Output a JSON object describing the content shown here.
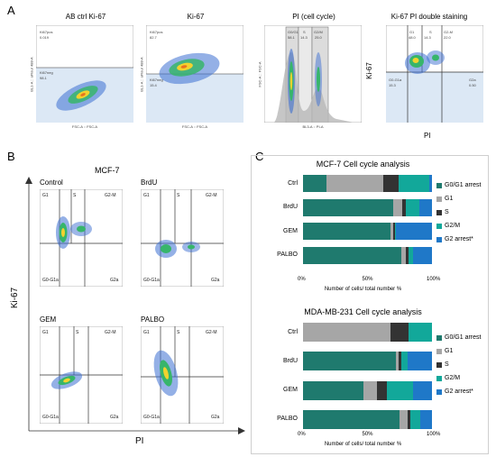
{
  "panel_letters": {
    "a": "A",
    "b": "B",
    "c": "C"
  },
  "panel_a": {
    "plots": [
      {
        "title": "AB ctrl Ki-67",
        "xlabel": "FSC-A :: FSC-A",
        "ylabel": "BL1-A :: aFlour 488-A",
        "gates": [
          {
            "label": "Ki67pos",
            "value": "0.019"
          },
          {
            "label": "Ki67neg",
            "value": "98.1"
          }
        ]
      },
      {
        "title": "Ki-67",
        "xlabel": "FSC-A :: FSC-A",
        "ylabel": "BL1-A :: aFlour 488-A",
        "gates": [
          {
            "label": "Ki67pos",
            "value": "82.7"
          },
          {
            "label": "Ki67neg",
            "value": "15.4"
          }
        ]
      },
      {
        "title": "PI (cell cycle)",
        "xlabel": "BL3-A :: PI-A",
        "ylabel": "FSC-A :: FSC-A",
        "gates": [
          {
            "label": "G0/G1",
            "value": "58.1"
          },
          {
            "label": "S",
            "value": "14.3"
          },
          {
            "label": "G2/M",
            "value": "25.0"
          }
        ]
      },
      {
        "title": "Ki-67 PI double staining",
        "xlabel": "PI",
        "ylabel": "Ki-67",
        "gates": [
          {
            "label": "G1",
            "value": "48.0"
          },
          {
            "label": "S",
            "value": "14.3"
          },
          {
            "label": "G2-M",
            "value": "22.0"
          },
          {
            "label": "G0-G1a",
            "value": "15.3"
          },
          {
            "label": "G2a",
            "value": "0.50"
          }
        ]
      }
    ]
  },
  "panel_b": {
    "title": "MCF-7",
    "xlabel": "PI",
    "ylabel": "Ki-67",
    "plots": [
      "Control",
      "BrdU",
      "GEM",
      "PALBO"
    ],
    "gate_labels": {
      "g1": "G1",
      "s": "S",
      "g2m": "G2-M",
      "g0": "G0-G1a",
      "g2a": "G2a"
    }
  },
  "panel_c": {
    "colors": {
      "G0/G1 arrest": "#1f7a6e",
      "G1": "#a6a6a6",
      "S": "#333333",
      "G2/M": "#12a89a",
      "G2 arrest*": "#1f78c8"
    },
    "xlabel": "Number of cells/ total number %",
    "ticks": [
      "0%",
      "50%",
      "100%"
    ],
    "legend": [
      "G0/G1 arrest",
      "G1",
      "S",
      "G2/M",
      "G2 arrest*"
    ],
    "chart_data": [
      {
        "type": "bar",
        "orientation": "horizontal-stacked",
        "title": "MCF-7 Cell cycle analysis",
        "categories": [
          "Ctrl",
          "BrdU",
          "GEM",
          "PALBO"
        ],
        "series": [
          {
            "name": "G0/G1 arrest",
            "values": [
              18,
              70,
              68,
              76
            ]
          },
          {
            "name": "G1",
            "values": [
              44,
              7,
              2,
              4
            ]
          },
          {
            "name": "S",
            "values": [
              12,
              3,
              1,
              2
            ]
          },
          {
            "name": "G2/M",
            "values": [
              24,
              10,
              1,
              3
            ]
          },
          {
            "name": "G2 arrest*",
            "values": [
              2,
              10,
              28,
              15
            ]
          }
        ],
        "xlim": [
          0,
          100
        ]
      },
      {
        "type": "bar",
        "orientation": "horizontal-stacked",
        "title": "MDA-MB-231 Cell cycle analysis",
        "categories": [
          "Ctrl",
          "BrdU",
          "GEM",
          "PALBO"
        ],
        "series": [
          {
            "name": "G0/G1 arrest",
            "values": [
              0,
              72,
              47,
              75
            ]
          },
          {
            "name": "G1",
            "values": [
              68,
              2,
              10,
              6
            ]
          },
          {
            "name": "S",
            "values": [
              14,
              2,
              8,
              2
            ]
          },
          {
            "name": "G2/M",
            "values": [
              18,
              5,
              20,
              8
            ]
          },
          {
            "name": "G2 arrest*",
            "values": [
              0,
              19,
              15,
              9
            ]
          }
        ],
        "xlim": [
          0,
          100
        ]
      }
    ]
  }
}
